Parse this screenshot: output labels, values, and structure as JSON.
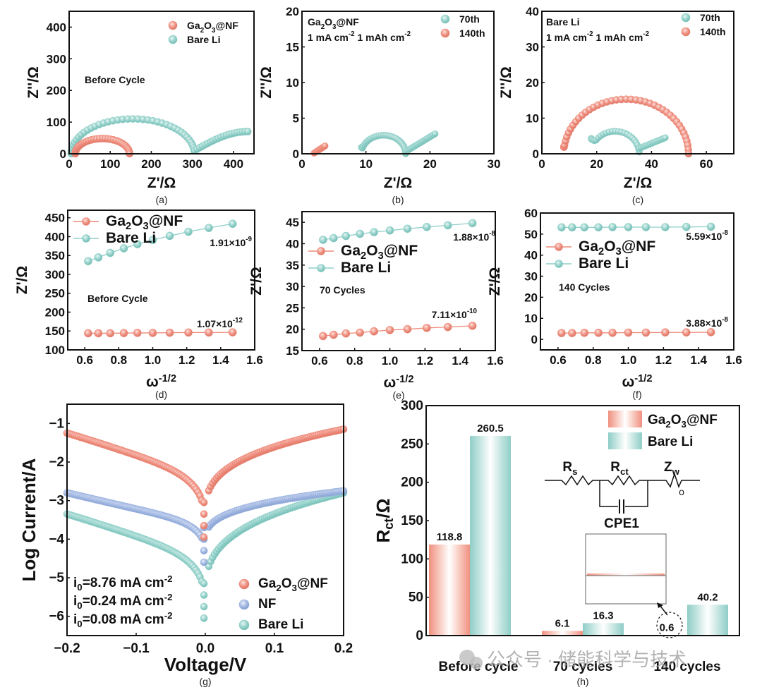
{
  "colors": {
    "ga2o3": "#ee8a7a",
    "bare_li": "#8fcfc8",
    "nf": "#9db4e0",
    "axis": "#111111"
  },
  "watermark": "公众号 · 储能科学与技术",
  "chart_data": [
    {
      "id": "a",
      "type": "scatter",
      "panel_label": "(a)",
      "xlabel": "Z'/Ω",
      "ylabel": "Z''/Ω",
      "xlim": [
        0,
        450
      ],
      "ylim": [
        0,
        450
      ],
      "xticks": [
        0,
        100,
        200,
        300,
        400
      ],
      "yticks": [
        0,
        100,
        200,
        300,
        400
      ],
      "annotation": "Before Cycle",
      "legend": [
        "Ga2O3@NF",
        "Bare Li"
      ],
      "legend_position": "top-right",
      "series": [
        {
          "name": "Ga2O3@NF",
          "color_key": "ga2o3",
          "shape": "semicircle",
          "x_start": 15,
          "x_end": 147,
          "peak": 48,
          "points": 32
        },
        {
          "name": "Bare Li",
          "color_key": "bare_li",
          "shape": "semicircle+arc",
          "x_start": 5,
          "x_end": 305,
          "peak": 110,
          "tail_end_x": 435,
          "tail_end_y": 70,
          "points": 60
        }
      ]
    },
    {
      "id": "b",
      "type": "scatter",
      "panel_label": "(b)",
      "xlabel": "Z'/Ω",
      "ylabel": "Z''/Ω",
      "xlim": [
        0,
        30
      ],
      "ylim": [
        0,
        20
      ],
      "xticks": [
        0,
        10,
        20,
        30
      ],
      "yticks": [
        0,
        5,
        10,
        15,
        20
      ],
      "annotation_lines": [
        "Ga2O3@NF",
        "1 mA cm-2 1 mAh cm-2"
      ],
      "legend": [
        "70th",
        "140th"
      ],
      "legend_position": "top-right",
      "series": [
        {
          "name": "70th",
          "color_key": "bare_li",
          "x_start": 9.3,
          "x_end": 16.2,
          "peak": 2.6,
          "start_y": 0.9,
          "tail_end_x": 20.8,
          "tail_end_y": 2.8
        },
        {
          "name": "140th",
          "color_key": "ga2o3",
          "x_start": 1.9,
          "x_end": 3.6,
          "start_y": 0.1,
          "end_y": 1.1
        }
      ]
    },
    {
      "id": "c",
      "type": "scatter",
      "panel_label": "(c)",
      "xlabel": "Z'/Ω",
      "ylabel": "Z''/Ω",
      "xlim": [
        0,
        70
      ],
      "ylim": [
        0,
        40
      ],
      "xticks": [
        0,
        20,
        40,
        60
      ],
      "yticks": [
        0,
        10,
        20,
        30,
        40
      ],
      "annotation_lines": [
        "Bare Li",
        "1 mA cm-2 1 mAh cm-2"
      ],
      "legend": [
        "70th",
        "140th"
      ],
      "legend_position": "top-right",
      "series": [
        {
          "name": "70th",
          "color_key": "bare_li",
          "x_start": 18,
          "x_end": 35.5,
          "peak": 6.3,
          "start_y": 4.3,
          "tail_end_x": 45,
          "tail_end_y": 4.5
        },
        {
          "name": "140th",
          "color_key": "ga2o3",
          "x_start": 8,
          "x_end": 53.5,
          "peak": 15.3,
          "start_y": 1.9
        }
      ]
    },
    {
      "id": "d",
      "type": "line",
      "panel_label": "(d)",
      "xlabel": "ω-1/2",
      "ylabel": "Z'/Ω",
      "xlim": [
        0.5,
        1.6
      ],
      "ylim": [
        100,
        470
      ],
      "xticks": [
        0.6,
        0.8,
        1.0,
        1.2,
        1.4,
        1.6
      ],
      "yticks": [
        100,
        150,
        200,
        250,
        300,
        350,
        400,
        450
      ],
      "annotation": "Before Cycle",
      "legend": [
        "Ga2O3@NF",
        "Bare Li"
      ],
      "legend_position": "top-left",
      "x": [
        0.62,
        0.68,
        0.75,
        0.83,
        0.91,
        1.0,
        1.1,
        1.21,
        1.33,
        1.47
      ],
      "series": [
        {
          "name": "Ga2O3@NF",
          "color_key": "ga2o3",
          "values": [
            144,
            144,
            144,
            144.5,
            145,
            145,
            145.5,
            146,
            146,
            146.5
          ],
          "label": "1.91×10",
          "label_exp": "-9"
        },
        {
          "name": "Bare Li",
          "color_key": "bare_li",
          "values": [
            335,
            345,
            357,
            369,
            380,
            391,
            402,
            413,
            423,
            434
          ],
          "label": "1.07×10",
          "label_exp": "-12"
        }
      ]
    },
    {
      "id": "e",
      "type": "line",
      "panel_label": "(e)",
      "xlabel": "ω-1/2",
      "ylabel": "Z'/Ω",
      "xlim": [
        0.5,
        1.6
      ],
      "ylim": [
        15,
        47.5
      ],
      "xticks": [
        0.6,
        0.8,
        1.0,
        1.2,
        1.4,
        1.6
      ],
      "yticks": [
        15,
        20,
        25,
        30,
        35,
        40,
        45
      ],
      "annotation": "70 Cycles",
      "legend": [
        "Ga2O3@NF",
        "Bare Li"
      ],
      "legend_position": "middle-left",
      "x": [
        0.62,
        0.68,
        0.75,
        0.83,
        0.91,
        1.0,
        1.1,
        1.21,
        1.33,
        1.47
      ],
      "series": [
        {
          "name": "Ga2O3@NF",
          "color_key": "ga2o3",
          "values": [
            18.4,
            18.7,
            19.0,
            19.2,
            19.5,
            19.8,
            20.0,
            20.3,
            20.5,
            20.8
          ],
          "label": "1.88×10",
          "label_exp": "-8"
        },
        {
          "name": "Bare Li",
          "color_key": "bare_li",
          "values": [
            40.9,
            41.3,
            41.8,
            42.3,
            42.7,
            43.1,
            43.5,
            43.9,
            44.3,
            44.8
          ],
          "label": "7.11×10",
          "label_exp": "-10"
        }
      ]
    },
    {
      "id": "f",
      "type": "line",
      "panel_label": "(f)",
      "xlabel": "ω-1/2",
      "ylabel": "Z'/Ω",
      "xlim": [
        0.5,
        1.6
      ],
      "ylim": [
        -5,
        60
      ],
      "xticks": [
        0.6,
        0.8,
        1.0,
        1.2,
        1.4,
        1.6
      ],
      "yticks": [
        0,
        10,
        20,
        30,
        40,
        50,
        60
      ],
      "annotation": "140 Cycles",
      "legend": [
        "Ga2O3@NF",
        "Bare Li"
      ],
      "legend_position": "middle-left",
      "x": [
        0.62,
        0.68,
        0.75,
        0.83,
        0.91,
        1.0,
        1.1,
        1.21,
        1.33,
        1.47
      ],
      "series": [
        {
          "name": "Ga2O3@NF",
          "color_key": "ga2o3",
          "values": [
            3.0,
            3.0,
            3.1,
            3.1,
            3.1,
            3.2,
            3.2,
            3.3,
            3.3,
            3.4
          ],
          "label": "5.59×10",
          "label_exp": "-8"
        },
        {
          "name": "Bare Li",
          "color_key": "bare_li",
          "values": [
            53.2,
            53.2,
            53.2,
            53.2,
            53.3,
            53.3,
            53.3,
            53.3,
            53.4,
            53.5
          ],
          "label": "3.88×10",
          "label_exp": "-8"
        }
      ]
    },
    {
      "id": "g",
      "type": "scatter",
      "panel_label": "(g)",
      "xlabel": "Voltage/V",
      "ylabel": "Log Current/A",
      "xlim": [
        -0.2,
        0.2
      ],
      "ylim": [
        -6.5,
        -0.5
      ],
      "xticks": [
        -0.2,
        -0.1,
        0.0,
        0.1,
        0.2
      ],
      "yticks": [
        -1,
        -2,
        -3,
        -4,
        -5,
        -6
      ],
      "xtick_labels": [
        "−0.2",
        "−0.1",
        "0.0",
        "0.1",
        "0.2"
      ],
      "ytick_labels": [
        "−1",
        "−2",
        "−3",
        "−4",
        "−5",
        "−6"
      ],
      "legend": [
        "Ga2O3@NF",
        "NF",
        "Bare Li"
      ],
      "legend_position": "bottom-right",
      "annotations": [
        {
          "text": "i0=8.76 mA cm-2",
          "color_key": "ga2o3"
        },
        {
          "text": "i0=0.24 mA cm-2",
          "color_key": "nf"
        },
        {
          "text": "i0=0.08 mA cm-2",
          "color_key": "bare_li"
        }
      ],
      "series": [
        {
          "name": "Ga2O3@NF",
          "color_key": "ga2o3",
          "left_y": -1.25,
          "right_y": -1.15,
          "min_y": -3.95
        },
        {
          "name": "NF",
          "color_key": "nf",
          "left_y": -2.8,
          "right_y": -2.75,
          "min_y": -4.6
        },
        {
          "name": "Bare Li",
          "color_key": "bare_li",
          "left_y": -3.35,
          "right_y": -2.8,
          "min_y": -6.05
        }
      ]
    },
    {
      "id": "h",
      "type": "bar",
      "panel_label": "(h)",
      "xlabel": "",
      "ylabel": "Rct/Ω",
      "ylim": [
        0,
        300
      ],
      "yticks": [
        0,
        50,
        100,
        150,
        200,
        250,
        300
      ],
      "categories": [
        "Before cycle",
        "70 cycles",
        "140 cycles"
      ],
      "legend": [
        "Ga2O3@NF",
        "Bare Li"
      ],
      "legend_position": "top-right",
      "series": [
        {
          "name": "Ga2O3@NF",
          "color_key": "ga2o3",
          "values": [
            118.8,
            6.1,
            0.6
          ],
          "labels": [
            "118.8",
            "6.1",
            "0.6"
          ]
        },
        {
          "name": "Bare Li",
          "color_key": "bare_li",
          "values": [
            260.5,
            16.3,
            40.2
          ],
          "labels": [
            "260.5",
            "16.3",
            "40.2"
          ]
        }
      ],
      "circuit": {
        "elements": [
          "Rs",
          "Rct",
          "Zw",
          "CPE1"
        ]
      }
    }
  ]
}
